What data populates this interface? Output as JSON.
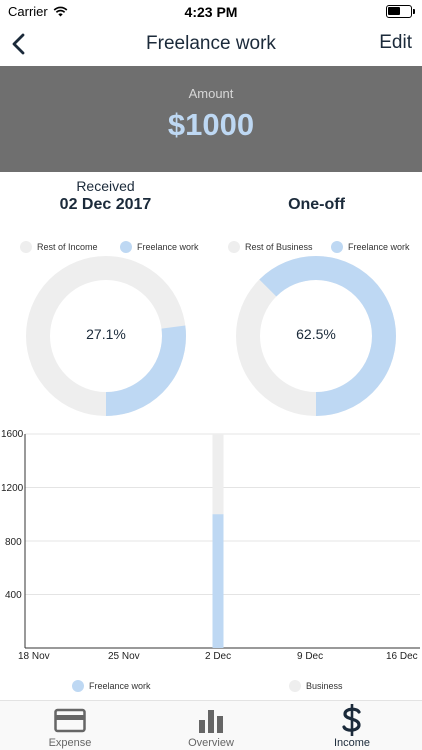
{
  "status_bar": {
    "carrier": "Carrier",
    "time": "4:23 PM"
  },
  "nav": {
    "title": "Freelance work",
    "edit_label": "Edit"
  },
  "amount": {
    "label": "Amount",
    "value": "$1000"
  },
  "received": {
    "label": "Received",
    "date": "02 Dec 2017"
  },
  "frequency": "One-off",
  "colors": {
    "accent": "#bed8f3",
    "neutral": "#eeeeee",
    "banner": "#6f6f6f",
    "text": "#1b2a3a"
  },
  "donut_left": {
    "legend_rest": "Rest of Income",
    "legend_item": "Freelance work",
    "percent_label": "27.1%",
    "percent": 27.1
  },
  "donut_right": {
    "legend_rest": "Rest of Business",
    "legend_item": "Freelance work",
    "percent_label": "62.5%",
    "percent": 62.5
  },
  "chart_data": {
    "type": "bar",
    "categories": [
      "18 Nov",
      "25 Nov",
      "2 Dec",
      "9 Dec",
      "16 Dec"
    ],
    "yticks": [
      "1600",
      "1200",
      "800",
      "400"
    ],
    "ylim": [
      0,
      1600
    ],
    "series": [
      {
        "name": "Freelance work",
        "values": [
          0,
          0,
          1000,
          0,
          0
        ]
      },
      {
        "name": "Business",
        "values": [
          0,
          0,
          1600,
          0,
          0
        ]
      }
    ],
    "grid": true
  },
  "legend_bottom": {
    "item1": "Freelance work",
    "item2": "Business"
  },
  "tabs": [
    {
      "label": "Expense",
      "icon": "card-icon"
    },
    {
      "label": "Overview",
      "icon": "bar-chart-icon"
    },
    {
      "label": "Income",
      "icon": "dollar-icon"
    }
  ]
}
